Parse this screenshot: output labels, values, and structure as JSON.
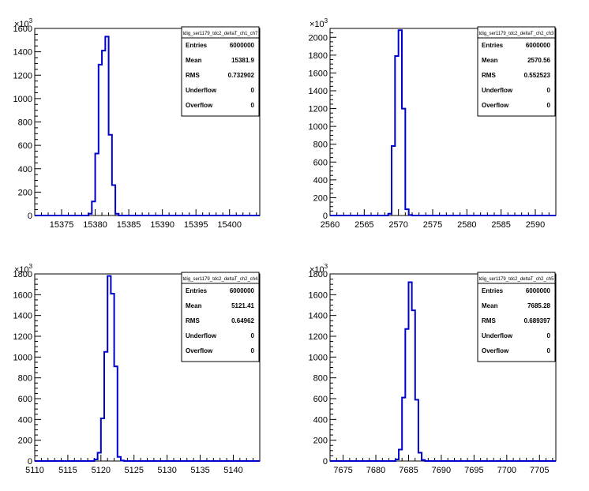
{
  "chart_data": [
    {
      "type": "histogram",
      "stats": {
        "title": "tdig_ser1179_tdc2_deltaT_ch1_ch7",
        "rows": [
          {
            "label": "Entries",
            "value": "6000000"
          },
          {
            "label": "Mean",
            "value": "15381.9"
          },
          {
            "label": "RMS",
            "value": "0.732902"
          },
          {
            "label": "Underflow",
            "value": "0"
          },
          {
            "label": "Overflow",
            "value": "0"
          }
        ]
      },
      "y_multiplier": "10^3",
      "xlim": [
        15371,
        15404.5
      ],
      "ylim": [
        0,
        1600
      ],
      "x_ticks": [
        15375,
        15380,
        15385,
        15390,
        15395,
        15400
      ],
      "y_ticks": [
        0,
        200,
        400,
        600,
        800,
        1000,
        1200,
        1400,
        1600
      ],
      "bins": {
        "edges": [
          15379,
          15379.5,
          15380,
          15380.5,
          15381,
          15381.5,
          15382,
          15382.5,
          15383,
          15383.5,
          15384
        ],
        "values": [
          15,
          120,
          530,
          1290,
          1410,
          1530,
          690,
          260,
          15,
          0
        ]
      }
    },
    {
      "type": "histogram",
      "stats": {
        "title": "tdig_ser1179_tdc2_deltaT_ch2_ch3",
        "rows": [
          {
            "label": "Entries",
            "value": "6000000"
          },
          {
            "label": "Mean",
            "value": "2570.56"
          },
          {
            "label": "RMS",
            "value": "0.552523"
          },
          {
            "label": "Underflow",
            "value": "0"
          },
          {
            "label": "Overflow",
            "value": "0"
          }
        ]
      },
      "y_multiplier": "10^3",
      "xlim": [
        2560,
        2593
      ],
      "ylim": [
        0,
        2100
      ],
      "x_ticks": [
        2560,
        2565,
        2570,
        2575,
        2580,
        2585,
        2590
      ],
      "y_ticks": [
        0,
        200,
        400,
        600,
        800,
        1000,
        1200,
        1400,
        1600,
        1800,
        2000
      ],
      "bins": {
        "edges": [
          2568.5,
          2569,
          2569.5,
          2570,
          2570.5,
          2571,
          2571.5,
          2572
        ],
        "values": [
          20,
          780,
          1790,
          2080,
          1200,
          70,
          5
        ]
      }
    },
    {
      "type": "histogram",
      "stats": {
        "title": "tdig_ser1179_tdc2_deltaT_ch2_ch4",
        "rows": [
          {
            "label": "Entries",
            "value": "6000000"
          },
          {
            "label": "Mean",
            "value": "5121.41"
          },
          {
            "label": "RMS",
            "value": "0.64962"
          },
          {
            "label": "Underflow",
            "value": "0"
          },
          {
            "label": "Overflow",
            "value": "0"
          }
        ]
      },
      "y_multiplier": "10^3",
      "xlim": [
        5110,
        5144
      ],
      "ylim": [
        0,
        1800
      ],
      "x_ticks": [
        5110,
        5115,
        5120,
        5125,
        5130,
        5135,
        5140
      ],
      "y_ticks": [
        0,
        200,
        400,
        600,
        800,
        1000,
        1200,
        1400,
        1600,
        1800
      ],
      "bins": {
        "edges": [
          5119,
          5119.5,
          5120,
          5120.5,
          5121,
          5121.5,
          5122,
          5122.5,
          5123,
          5123.5
        ],
        "values": [
          15,
          80,
          410,
          1050,
          1780,
          1610,
          910,
          40,
          5
        ]
      }
    },
    {
      "type": "histogram",
      "stats": {
        "title": "tdig_ser1179_tdc2_deltaT_ch2_ch5",
        "rows": [
          {
            "label": "Entries",
            "value": "6000000"
          },
          {
            "label": "Mean",
            "value": "7685.28"
          },
          {
            "label": "RMS",
            "value": "0.689397"
          },
          {
            "label": "Underflow",
            "value": "0"
          },
          {
            "label": "Overflow",
            "value": "0"
          }
        ]
      },
      "y_multiplier": "10^3",
      "xlim": [
        7673,
        7707.5
      ],
      "ylim": [
        0,
        1800
      ],
      "x_ticks": [
        7675,
        7680,
        7685,
        7690,
        7695,
        7700,
        7705
      ],
      "y_ticks": [
        0,
        200,
        400,
        600,
        800,
        1000,
        1200,
        1400,
        1600,
        1800
      ],
      "bins": {
        "edges": [
          7683,
          7683.5,
          7684,
          7684.5,
          7685,
          7685.5,
          7686,
          7686.5,
          7687,
          7687.5
        ],
        "values": [
          15,
          110,
          610,
          1270,
          1720,
          1450,
          590,
          80,
          10
        ]
      }
    }
  ]
}
